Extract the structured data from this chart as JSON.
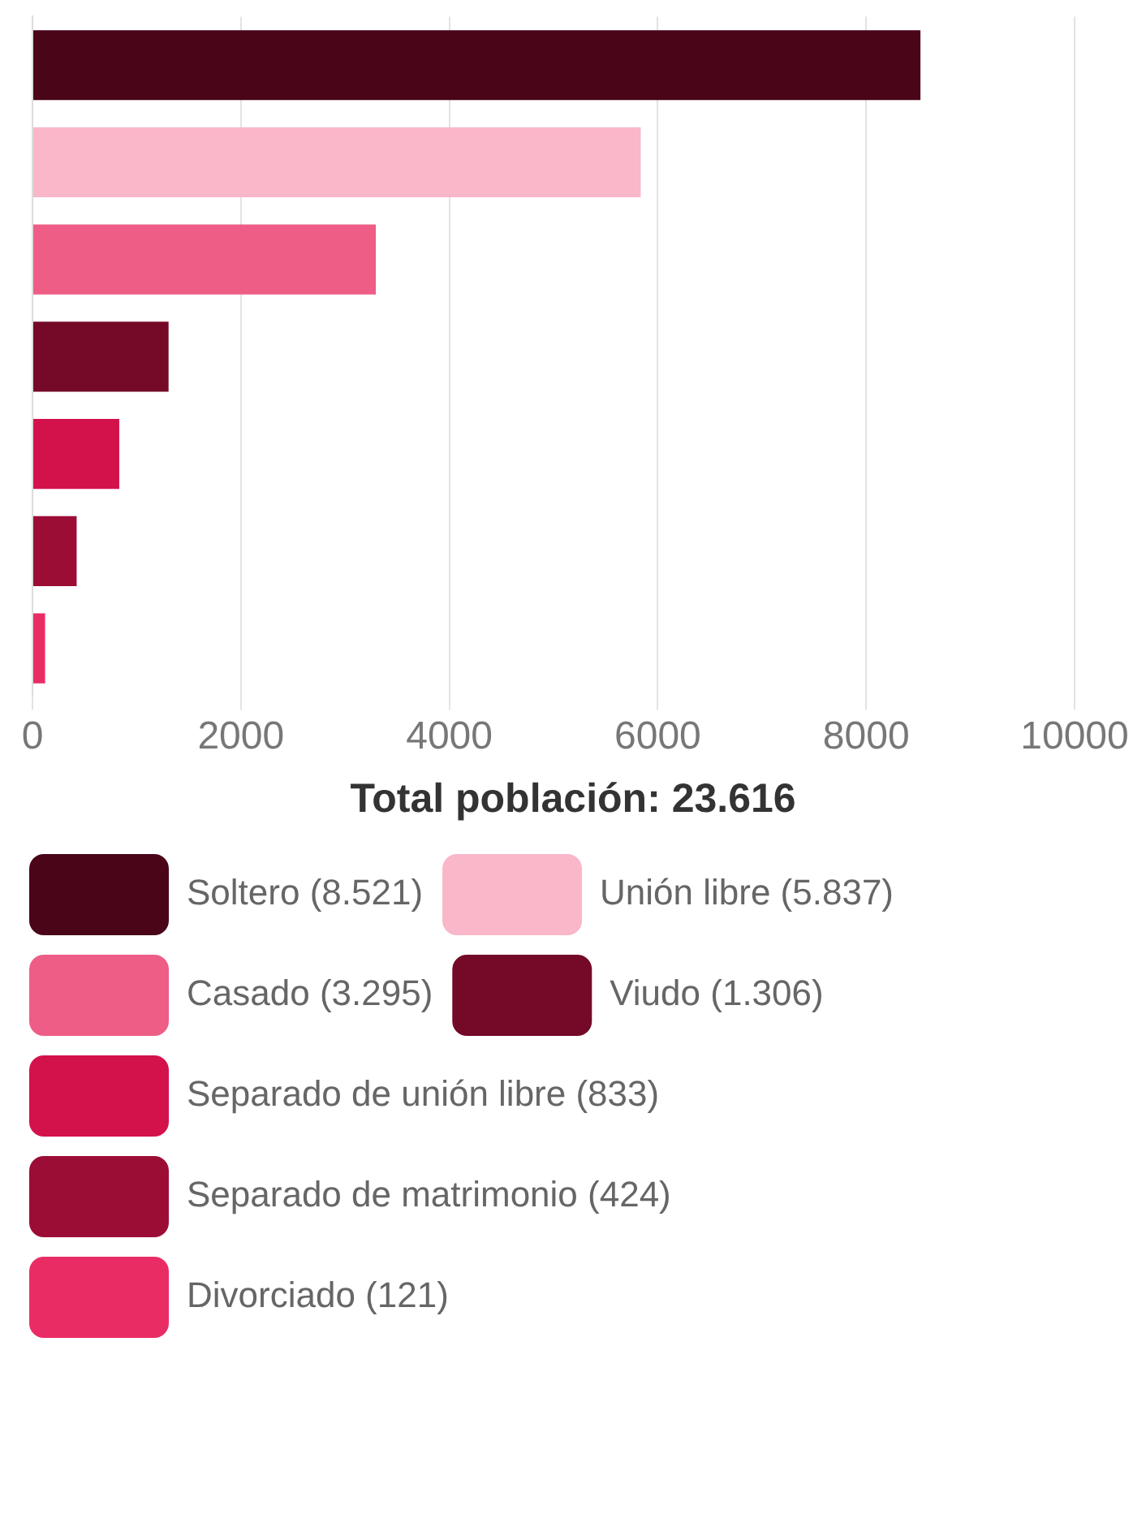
{
  "chart_data": {
    "type": "bar",
    "orientation": "horizontal",
    "categories": [
      null,
      null,
      null,
      null,
      null,
      null,
      null
    ],
    "series": [
      {
        "name": "Soltero (8.521)",
        "color": "#4a0519",
        "values": [
          8521,
          null,
          null,
          null,
          null,
          null,
          null
        ]
      },
      {
        "name": "Unión libre (5.837)",
        "color": "#f9b7c9",
        "values": [
          null,
          5837,
          null,
          null,
          null,
          null,
          null
        ]
      },
      {
        "name": "Casado (3.295)",
        "color": "#ee5d86",
        "values": [
          null,
          null,
          3295,
          null,
          null,
          null,
          null
        ]
      },
      {
        "name": "Viudo (1.306)",
        "color": "#740a27",
        "values": [
          null,
          null,
          null,
          1306,
          null,
          null,
          null
        ]
      },
      {
        "name": "Separado de unión libre (833)",
        "color": "#d3124b",
        "values": [
          null,
          null,
          null,
          null,
          833,
          null,
          null
        ]
      },
      {
        "name": "Separado de matrimonio (424)",
        "color": "#9c0d36",
        "values": [
          null,
          null,
          null,
          null,
          null,
          424,
          null
        ]
      },
      {
        "name": "Divorciado (121)",
        "color": "#ea2c64",
        "values": [
          null,
          null,
          null,
          null,
          null,
          null,
          121
        ]
      }
    ],
    "xlim": [
      0,
      10000
    ],
    "xticks": [
      0,
      2000,
      4000,
      6000,
      8000,
      10000
    ],
    "grid": "x",
    "legend": "bottom",
    "legend_title": "Total población: 23.616"
  }
}
